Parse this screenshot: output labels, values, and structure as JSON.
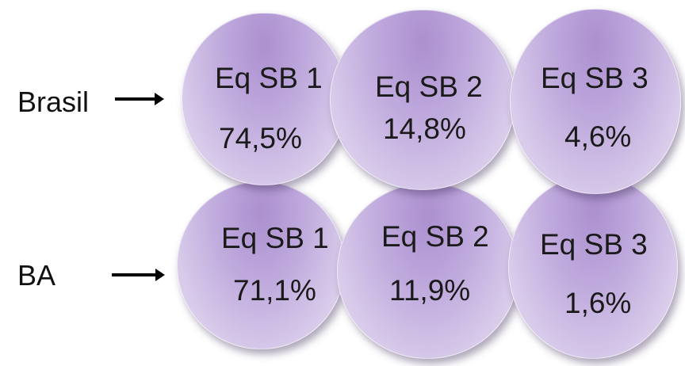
{
  "rows": [
    {
      "label": "Brasil",
      "items": [
        {
          "name": "Eq SB 1",
          "value": "74,5%"
        },
        {
          "name": "Eq SB 2",
          "value": "14,8%"
        },
        {
          "name": "Eq SB 3",
          "value": "4,6%"
        }
      ]
    },
    {
      "label": "BA",
      "items": [
        {
          "name": "Eq SB 1",
          "value": "71,1%"
        },
        {
          "name": "Eq SB 2",
          "value": "11,9%"
        },
        {
          "name": "Eq SB 3",
          "value": "1,6%"
        }
      ]
    }
  ],
  "colors": {
    "circle_fill": "#bea8dc",
    "text": "#1a1a1a",
    "arrow": "#000000"
  }
}
